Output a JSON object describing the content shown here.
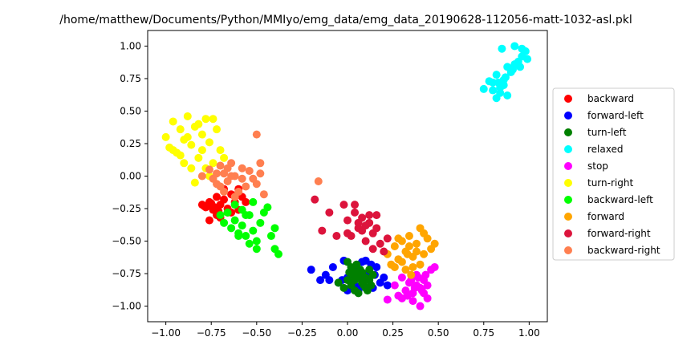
{
  "chart_data": {
    "type": "scatter",
    "title": "/home/matthew/Documents/Python/MMIyo/emg_data/emg_data_20190628-112056-matt-1032-asl.pkl",
    "xlabel": "",
    "ylabel": "",
    "xlim": [
      -1.1,
      1.1
    ],
    "ylim": [
      -1.12,
      1.12
    ],
    "x_ticks": [
      -1.0,
      -0.75,
      -0.5,
      -0.25,
      0.0,
      0.25,
      0.5,
      0.75,
      1.0
    ],
    "x_tick_labels": [
      "−1.00",
      "−0.75",
      "−0.50",
      "−0.25",
      "0.00",
      "0.25",
      "0.50",
      "0.75",
      "1.00"
    ],
    "y_ticks": [
      1.0,
      0.75,
      0.5,
      0.25,
      0.0,
      -0.25,
      -0.5,
      -0.75,
      -1.0
    ],
    "y_tick_labels": [
      "1.00",
      "0.75",
      "0.50",
      "0.25",
      "0.00",
      "−0.25",
      "−0.50",
      "−0.75",
      "−1.00"
    ],
    "grid": false,
    "legend_position": "right",
    "series": [
      {
        "name": "backward",
        "color": "#ff0000",
        "points": [
          [
            -0.8,
            -0.22
          ],
          [
            -0.78,
            -0.24
          ],
          [
            -0.76,
            -0.2
          ],
          [
            -0.74,
            -0.26
          ],
          [
            -0.72,
            -0.3
          ],
          [
            -0.7,
            -0.22
          ],
          [
            -0.68,
            -0.18
          ],
          [
            -0.66,
            -0.25
          ],
          [
            -0.64,
            -0.14
          ],
          [
            -0.62,
            -0.2
          ],
          [
            -0.6,
            -0.1
          ],
          [
            -0.58,
            -0.16
          ],
          [
            -0.56,
            -0.2
          ],
          [
            -0.66,
            -0.28
          ],
          [
            -0.7,
            -0.32
          ],
          [
            -0.76,
            -0.34
          ],
          [
            -0.72,
            -0.16
          ],
          [
            -0.68,
            -0.1
          ],
          [
            -0.64,
            -0.28
          ],
          [
            -0.6,
            -0.26
          ],
          [
            -0.79,
            -0.23
          ],
          [
            -0.77,
            -0.23
          ],
          [
            -0.75,
            -0.21
          ],
          [
            -0.73,
            -0.24
          ],
          [
            -0.71,
            -0.27
          ]
        ]
      },
      {
        "name": "forward-left",
        "color": "#0000ff",
        "points": [
          [
            -0.2,
            -0.72
          ],
          [
            -0.15,
            -0.8
          ],
          [
            -0.12,
            -0.76
          ],
          [
            -0.08,
            -0.7
          ],
          [
            -0.05,
            -0.82
          ],
          [
            -0.02,
            -0.65
          ],
          [
            0.0,
            -0.78
          ],
          [
            0.02,
            -0.84
          ],
          [
            0.04,
            -0.72
          ],
          [
            0.06,
            -0.88
          ],
          [
            0.08,
            -0.66
          ],
          [
            0.1,
            -0.8
          ],
          [
            0.12,
            -0.74
          ],
          [
            0.14,
            -0.86
          ],
          [
            0.16,
            -0.7
          ],
          [
            0.18,
            -0.82
          ],
          [
            0.2,
            -0.78
          ],
          [
            0.22,
            -0.84
          ],
          [
            0.05,
            -0.85
          ],
          [
            -0.1,
            -0.8
          ],
          [
            0.1,
            -0.65
          ],
          [
            0.13,
            -0.68
          ],
          [
            0.0,
            -0.88
          ],
          [
            -0.03,
            -0.8
          ],
          [
            0.15,
            -0.76
          ]
        ]
      },
      {
        "name": "turn-left",
        "color": "#008000",
        "points": [
          [
            0.0,
            -0.66
          ],
          [
            0.02,
            -0.7
          ],
          [
            0.04,
            -0.74
          ],
          [
            0.06,
            -0.78
          ],
          [
            0.08,
            -0.82
          ],
          [
            0.1,
            -0.86
          ],
          [
            0.12,
            -0.72
          ],
          [
            0.14,
            -0.76
          ],
          [
            0.0,
            -0.8
          ],
          [
            0.02,
            -0.84
          ],
          [
            0.04,
            -0.88
          ],
          [
            0.06,
            -0.9
          ],
          [
            0.08,
            -0.74
          ],
          [
            0.1,
            -0.78
          ],
          [
            0.12,
            -0.8
          ],
          [
            -0.02,
            -0.86
          ],
          [
            0.03,
            -0.76
          ],
          [
            0.05,
            -0.68
          ],
          [
            0.07,
            -0.72
          ],
          [
            0.09,
            -0.84
          ],
          [
            0.11,
            -0.88
          ],
          [
            0.01,
            -0.74
          ],
          [
            0.04,
            -0.8
          ],
          [
            0.13,
            -0.84
          ],
          [
            -0.05,
            -0.82
          ]
        ]
      },
      {
        "name": "relaxed",
        "color": "#00ffff",
        "points": [
          [
            0.75,
            0.67
          ],
          [
            0.78,
            0.73
          ],
          [
            0.8,
            0.72
          ],
          [
            0.82,
            0.78
          ],
          [
            0.84,
            0.68
          ],
          [
            0.86,
            0.74
          ],
          [
            0.88,
            0.62
          ],
          [
            0.9,
            0.8
          ],
          [
            0.92,
            0.86
          ],
          [
            0.94,
            0.88
          ],
          [
            0.96,
            0.92
          ],
          [
            0.98,
            0.96
          ],
          [
            0.85,
            0.98
          ],
          [
            0.92,
            1.0
          ],
          [
            0.96,
            0.98
          ],
          [
            0.88,
            0.84
          ],
          [
            0.82,
            0.6
          ],
          [
            0.84,
            0.64
          ],
          [
            0.86,
            0.7
          ],
          [
            0.8,
            0.66
          ],
          [
            0.83,
            0.72
          ],
          [
            0.87,
            0.76
          ],
          [
            0.91,
            0.82
          ],
          [
            0.95,
            0.84
          ],
          [
            0.99,
            0.9
          ]
        ]
      },
      {
        "name": "stop",
        "color": "#ff00ff",
        "points": [
          [
            0.22,
            -0.95
          ],
          [
            0.26,
            -0.84
          ],
          [
            0.28,
            -0.92
          ],
          [
            0.3,
            -0.78
          ],
          [
            0.32,
            -0.88
          ],
          [
            0.34,
            -0.82
          ],
          [
            0.36,
            -0.9
          ],
          [
            0.38,
            -0.76
          ],
          [
            0.4,
            -0.86
          ],
          [
            0.42,
            -0.8
          ],
          [
            0.44,
            -0.94
          ],
          [
            0.46,
            -0.72
          ],
          [
            0.48,
            -0.7
          ],
          [
            0.4,
            -1.0
          ],
          [
            0.36,
            -0.96
          ],
          [
            0.38,
            -0.84
          ],
          [
            0.42,
            -0.9
          ],
          [
            0.35,
            -0.8
          ],
          [
            0.44,
            -0.84
          ],
          [
            0.39,
            -0.78
          ],
          [
            0.37,
            -0.86
          ],
          [
            0.41,
            -0.88
          ],
          [
            0.33,
            -0.92
          ],
          [
            0.43,
            -0.76
          ],
          [
            0.3,
            -0.94
          ]
        ]
      },
      {
        "name": "turn-right",
        "color": "#ffff00",
        "points": [
          [
            -1.0,
            0.3
          ],
          [
            -0.98,
            0.22
          ],
          [
            -0.96,
            0.42
          ],
          [
            -0.94,
            0.18
          ],
          [
            -0.92,
            0.36
          ],
          [
            -0.9,
            0.28
          ],
          [
            -0.88,
            0.46
          ],
          [
            -0.86,
            0.24
          ],
          [
            -0.84,
            0.38
          ],
          [
            -0.82,
            0.14
          ],
          [
            -0.8,
            0.32
          ],
          [
            -0.78,
            0.44
          ],
          [
            -0.76,
            0.26
          ],
          [
            -0.74,
            0.1
          ],
          [
            -0.72,
            0.36
          ],
          [
            -0.7,
            0.2
          ],
          [
            -0.86,
            0.06
          ],
          [
            -0.9,
            0.1
          ],
          [
            -0.84,
            -0.05
          ],
          [
            -0.78,
            0.06
          ],
          [
            -0.92,
            0.16
          ],
          [
            -0.88,
            0.3
          ],
          [
            -0.96,
            0.2
          ],
          [
            -0.82,
            0.4
          ],
          [
            -0.8,
            0.2
          ],
          [
            -0.74,
            0.44
          ],
          [
            -0.76,
            0.0
          ],
          [
            -0.68,
            0.14
          ]
        ]
      },
      {
        "name": "backward-left",
        "color": "#00ff00",
        "points": [
          [
            -0.7,
            -0.3
          ],
          [
            -0.68,
            -0.36
          ],
          [
            -0.66,
            -0.28
          ],
          [
            -0.64,
            -0.4
          ],
          [
            -0.62,
            -0.34
          ],
          [
            -0.6,
            -0.44
          ],
          [
            -0.58,
            -0.38
          ],
          [
            -0.56,
            -0.46
          ],
          [
            -0.54,
            -0.3
          ],
          [
            -0.52,
            -0.42
          ],
          [
            -0.5,
            -0.5
          ],
          [
            -0.48,
            -0.36
          ],
          [
            -0.46,
            -0.28
          ],
          [
            -0.44,
            -0.24
          ],
          [
            -0.42,
            -0.46
          ],
          [
            -0.4,
            -0.4
          ],
          [
            -0.4,
            -0.56
          ],
          [
            -0.38,
            -0.6
          ],
          [
            -0.52,
            -0.2
          ],
          [
            -0.56,
            -0.3
          ],
          [
            -0.6,
            -0.46
          ],
          [
            -0.58,
            -0.26
          ],
          [
            -0.5,
            -0.56
          ],
          [
            -0.54,
            -0.52
          ],
          [
            -0.62,
            -0.22
          ]
        ]
      },
      {
        "name": "forward",
        "color": "#ffa500",
        "points": [
          [
            0.22,
            -0.6
          ],
          [
            0.24,
            -0.68
          ],
          [
            0.26,
            -0.54
          ],
          [
            0.28,
            -0.64
          ],
          [
            0.3,
            -0.5
          ],
          [
            0.32,
            -0.58
          ],
          [
            0.34,
            -0.46
          ],
          [
            0.36,
            -0.62
          ],
          [
            0.38,
            -0.52
          ],
          [
            0.4,
            -0.68
          ],
          [
            0.42,
            -0.6
          ],
          [
            0.44,
            -0.48
          ],
          [
            0.46,
            -0.56
          ],
          [
            0.48,
            -0.52
          ],
          [
            0.4,
            -0.4
          ],
          [
            0.35,
            -0.76
          ],
          [
            0.32,
            -0.72
          ],
          [
            0.3,
            -0.66
          ],
          [
            0.28,
            -0.48
          ],
          [
            0.26,
            -0.7
          ],
          [
            0.38,
            -0.58
          ],
          [
            0.34,
            -0.54
          ],
          [
            0.36,
            -0.7
          ],
          [
            0.42,
            -0.44
          ],
          [
            0.33,
            -0.6
          ]
        ]
      },
      {
        "name": "forward-right",
        "color": "#dc143c",
        "points": [
          [
            -0.18,
            -0.18
          ],
          [
            -0.14,
            -0.42
          ],
          [
            -0.1,
            -0.28
          ],
          [
            -0.06,
            -0.46
          ],
          [
            -0.02,
            -0.22
          ],
          [
            0.0,
            -0.34
          ],
          [
            0.02,
            -0.46
          ],
          [
            0.04,
            -0.28
          ],
          [
            0.06,
            -0.4
          ],
          [
            0.08,
            -0.32
          ],
          [
            0.1,
            -0.5
          ],
          [
            0.12,
            -0.36
          ],
          [
            0.14,
            -0.44
          ],
          [
            0.16,
            -0.3
          ],
          [
            0.18,
            -0.52
          ],
          [
            0.2,
            -0.58
          ],
          [
            0.22,
            -0.48
          ],
          [
            0.0,
            -0.44
          ],
          [
            0.04,
            -0.22
          ],
          [
            0.08,
            -0.42
          ],
          [
            0.12,
            -0.3
          ],
          [
            0.14,
            -0.56
          ],
          [
            0.06,
            -0.36
          ],
          [
            0.1,
            -0.38
          ],
          [
            0.16,
            -0.4
          ]
        ]
      },
      {
        "name": "backward-right",
        "color": "#ff7f50",
        "points": [
          [
            -0.8,
            0.0
          ],
          [
            -0.76,
            0.05
          ],
          [
            -0.74,
            -0.02
          ],
          [
            -0.72,
            -0.06
          ],
          [
            -0.7,
            0.08
          ],
          [
            -0.68,
            0.02
          ],
          [
            -0.66,
            -0.04
          ],
          [
            -0.64,
            0.1
          ],
          [
            -0.62,
            0.0
          ],
          [
            -0.6,
            -0.12
          ],
          [
            -0.58,
            0.06
          ],
          [
            -0.56,
            -0.08
          ],
          [
            -0.54,
            0.04
          ],
          [
            -0.52,
            -0.02
          ],
          [
            -0.5,
            -0.06
          ],
          [
            -0.48,
            0.1
          ],
          [
            -0.48,
            0.02
          ],
          [
            -0.46,
            -0.14
          ],
          [
            -0.5,
            0.32
          ],
          [
            -0.16,
            -0.04
          ],
          [
            -0.68,
            -0.12
          ],
          [
            -0.72,
            0.02
          ],
          [
            -0.62,
            -0.16
          ],
          [
            -0.58,
            -0.02
          ],
          [
            -0.66,
            0.06
          ],
          [
            -0.7,
            -0.08
          ],
          [
            -0.64,
            0.0
          ]
        ]
      }
    ]
  }
}
